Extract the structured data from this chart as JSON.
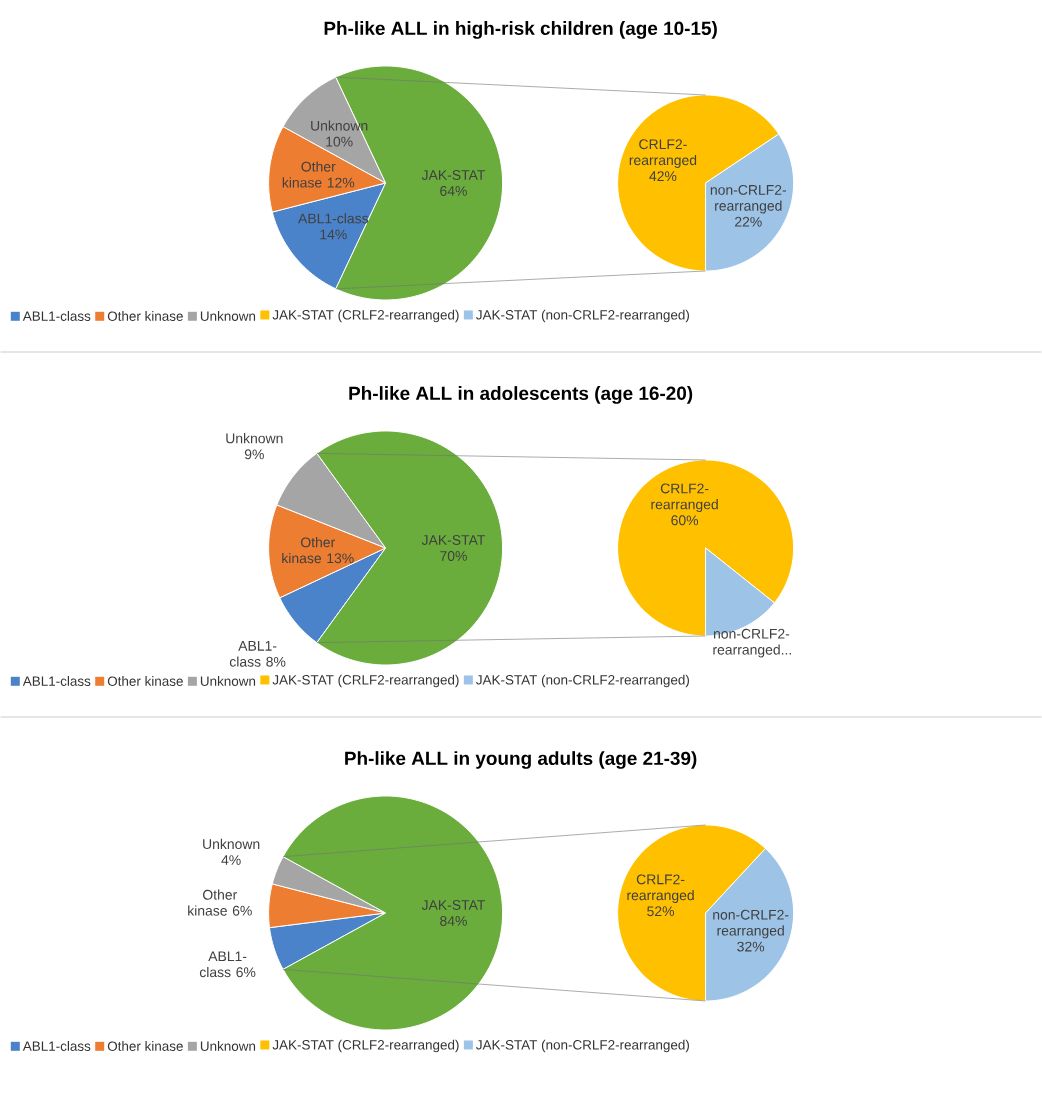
{
  "chart_data": [
    {
      "type": "pie",
      "title": "Ph-like ALL in high-risk children (age 10-15)",
      "categories": [
        "ABL1-class",
        "Other kinase",
        "Unknown",
        null
      ],
      "values": [
        14,
        12,
        10,
        64
      ],
      "colors": [
        "#4a83c9",
        "#ed7d31",
        "#a5a5a5",
        "#6aad3d"
      ],
      "value_labels": [
        "ABL1-class 14%",
        "Other kinase 12%",
        "Unknown 10%",
        "JAK-STAT 64%"
      ],
      "legend": "bottom"
    },
    {
      "type": "pie",
      "categories": [
        "JAK-STAT (CRLF2-rearranged)",
        "JAK-STAT (non-CRLF2-rearranged)"
      ],
      "values": [
        42,
        22
      ],
      "colors": [
        "#ffc000",
        "#9dc3e6"
      ],
      "value_labels": [
        "CRLF2-rearranged 42%",
        "non-CRLF2-rearranged 22%"
      ],
      "legend": "bottom"
    },
    {
      "type": "pie",
      "title": "Ph-like ALL in adolescents (age 16-20)",
      "categories": [
        "ABL1-class",
        "Other kinase",
        "Unknown",
        null
      ],
      "values": [
        8,
        13,
        9,
        70
      ],
      "colors": [
        "#4a83c9",
        "#ed7d31",
        "#a5a5a5",
        "#6aad3d"
      ],
      "value_labels": [
        "ABL1-class 8%",
        "Other kinase 13%",
        "Unknown 9%",
        "JAK-STAT 70%"
      ],
      "legend": "bottom"
    },
    {
      "type": "pie",
      "categories": [
        "JAK-STAT (CRLF2-rearranged)",
        "JAK-STAT (non-CRLF2-rearranged)"
      ],
      "values": [
        60,
        10
      ],
      "colors": [
        "#ffc000",
        "#9dc3e6"
      ],
      "value_labels": [
        "CRLF2-rearranged 60%",
        "non-CRLF2-rearranged..."
      ],
      "legend": "bottom"
    },
    {
      "type": "pie",
      "title": "Ph-like ALL in young adults (age 21-39)",
      "categories": [
        "ABL1-class",
        "Other kinase",
        "Unknown",
        null
      ],
      "values": [
        6,
        6,
        4,
        84
      ],
      "colors": [
        "#4a83c9",
        "#ed7d31",
        "#a5a5a5",
        "#6aad3d"
      ],
      "value_labels": [
        "ABL1-class 6%",
        "Other kinase 6%",
        "Unknown 4%",
        "JAK-STAT 84%"
      ],
      "legend": "bottom"
    },
    {
      "type": "pie",
      "categories": [
        "JAK-STAT (CRLF2-rearranged)",
        "JAK-STAT (non-CRLF2-rearranged)"
      ],
      "values": [
        52,
        32
      ],
      "colors": [
        "#ffc000",
        "#9dc3e6"
      ],
      "value_labels": [
        "CRLF2-rearranged 52%",
        "non-CRLF2-rearranged 32%"
      ],
      "legend": "bottom"
    }
  ]
}
